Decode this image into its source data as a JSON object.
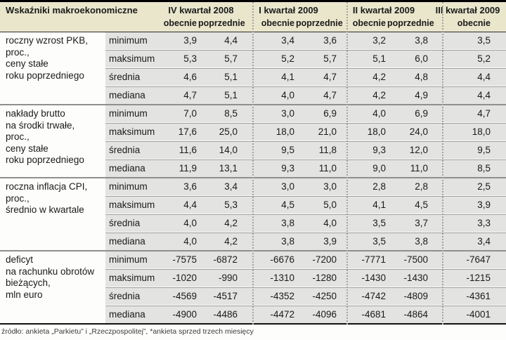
{
  "table": {
    "title": "Wskaźniki makroekonomiczne",
    "quarters": [
      {
        "label": "IV kwartał 2008",
        "cols": [
          "obecnie",
          "poprzednie"
        ]
      },
      {
        "label": "I kwartał 2009",
        "cols": [
          "obecnie",
          "poprzednie"
        ]
      },
      {
        "label": "II kwartał 2009",
        "cols": [
          "obecnie",
          "poprzednie"
        ]
      },
      {
        "label": "III kwartał 2009",
        "cols": [
          "obecnie"
        ]
      }
    ],
    "blocks": [
      {
        "label_lines": [
          "roczny wzrost PKB,",
          "proc.,",
          "ceny stałe",
          "roku poprzedniego"
        ],
        "rows": [
          {
            "stat": "minimum",
            "values": [
              "3,9",
              "4,4",
              "3,4",
              "3,6",
              "3,2",
              "3,8",
              "3,5"
            ]
          },
          {
            "stat": "maksimum",
            "values": [
              "5,3",
              "5,7",
              "5,2",
              "5,7",
              "5,1",
              "6,0",
              "5,2"
            ]
          },
          {
            "stat": "średnia",
            "values": [
              "4,6",
              "5,1",
              "4,1",
              "4,7",
              "4,2",
              "4,8",
              "4,4"
            ]
          },
          {
            "stat": "mediana",
            "values": [
              "4,7",
              "5,1",
              "4,0",
              "4,7",
              "4,2",
              "4,9",
              "4,4"
            ]
          }
        ]
      },
      {
        "label_lines": [
          "nakłady brutto",
          "na środki trwałe,",
          "proc.,",
          "ceny stałe",
          "roku poprzedniego"
        ],
        "rows": [
          {
            "stat": "minimum",
            "values": [
              "7,0",
              "8,5",
              "3,0",
              "6,9",
              "4,0",
              "6,9",
              "4,7"
            ]
          },
          {
            "stat": "maksimum",
            "values": [
              "17,6",
              "25,0",
              "18,0",
              "21,0",
              "18,0",
              "24,0",
              "18,0"
            ]
          },
          {
            "stat": "średnia",
            "values": [
              "11,6",
              "14,0",
              "9,5",
              "11,8",
              "9,3",
              "12,0",
              "9,5"
            ]
          },
          {
            "stat": "mediana",
            "values": [
              "11,9",
              "13,1",
              "9,3",
              "11,0",
              "9,0",
              "11,0",
              "8,5"
            ]
          }
        ]
      },
      {
        "label_lines": [
          "roczna inflacja CPI,",
          "proc.,",
          "średnio w kwartale"
        ],
        "rows": [
          {
            "stat": "minimum",
            "values": [
              "3,6",
              "3,4",
              "3,0",
              "3,0",
              "2,8",
              "2,8",
              "2,5"
            ]
          },
          {
            "stat": "maksimum",
            "values": [
              "4,4",
              "5,3",
              "4,5",
              "5,0",
              "4,1",
              "4,5",
              "3,9"
            ]
          },
          {
            "stat": "średnia",
            "values": [
              "4,0",
              "4,2",
              "3,8",
              "4,0",
              "3,5",
              "3,7",
              "3,3"
            ]
          },
          {
            "stat": "mediana",
            "values": [
              "4,0",
              "4,2",
              "3,8",
              "3,9",
              "3,5",
              "3,8",
              "3,4"
            ]
          }
        ]
      },
      {
        "label_lines": [
          "deficyt",
          "na rachunku obrotów",
          "bieżących,",
          "mln euro"
        ],
        "rows": [
          {
            "stat": "minimum",
            "values": [
              "-7575",
              "-6872",
              "-6676",
              "-7200",
              "-7771",
              "-7500",
              "-7647"
            ]
          },
          {
            "stat": "maksimum",
            "values": [
              "-1020",
              "-990",
              "-1310",
              "-1280",
              "-1430",
              "-1430",
              "-1215"
            ]
          },
          {
            "stat": "średnia",
            "values": [
              "-4569",
              "-4517",
              "-4352",
              "-4250",
              "-4742",
              "-4809",
              "-4361"
            ]
          },
          {
            "stat": "mediana",
            "values": [
              "-4900",
              "-4486",
              "-4472",
              "-4096",
              "-4681",
              "-4864",
              "-4001"
            ]
          }
        ]
      }
    ],
    "footer": "źródło: ankieta „Parkietu” i „Rzeczpospolitej”, *ankieta sprzed trzech miesięcy"
  },
  "colors": {
    "header_bg": "#e9e6cc",
    "row_bg": "#e3e3e1",
    "rule_dark": "#8f8f8d",
    "border_black": "#000000"
  }
}
